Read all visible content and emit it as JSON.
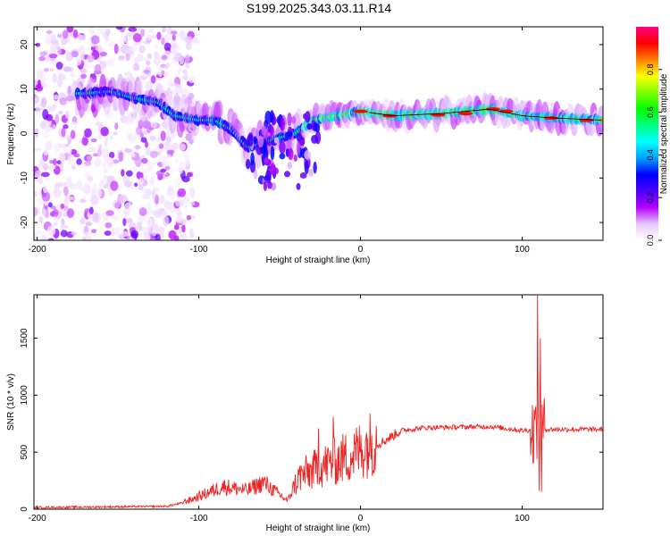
{
  "title": "S199.2025.343.03.11.R14",
  "chart_data": [
    {
      "type": "heatmap",
      "xlabel": "Height of straight line (km)",
      "ylabel": "Frequency (Hz)",
      "xlim": [
        -202,
        150
      ],
      "ylim": [
        -24,
        24
      ],
      "xticks": [
        -200,
        -100,
        0,
        100
      ],
      "yticks": [
        20,
        10,
        0,
        -10,
        -20
      ],
      "colorbar": {
        "label": "Normalized spectral amplitude",
        "ticks": [
          "0.0",
          "0.2",
          "0.4",
          "0.6",
          "0.8"
        ],
        "tick_values": [
          0.0,
          0.2,
          0.4,
          0.6,
          0.8
        ],
        "range": [
          0,
          1
        ],
        "colors": [
          "#ffffff",
          "#e6c8ff",
          "#b400ff",
          "#4b00ff",
          "#0000ff",
          "#00a0ff",
          "#00ffff",
          "#00ff80",
          "#00ff00",
          "#80ff00",
          "#ffff00",
          "#ff8000",
          "#ff0000",
          "#ff0080"
        ]
      },
      "ridge": [
        {
          "x": -170,
          "f": 9
        },
        {
          "x": -155,
          "f": 9.5
        },
        {
          "x": -140,
          "f": 8
        },
        {
          "x": -125,
          "f": 7
        },
        {
          "x": -115,
          "f": 4
        },
        {
          "x": -100,
          "f": 3
        },
        {
          "x": -90,
          "f": 3
        },
        {
          "x": -80,
          "f": 1
        },
        {
          "x": -70,
          "f": -3
        },
        {
          "x": -60,
          "f": -2
        },
        {
          "x": -50,
          "f": -1
        },
        {
          "x": -40,
          "f": 0
        },
        {
          "x": -30,
          "f": 3
        },
        {
          "x": -15,
          "f": 4
        },
        {
          "x": 0,
          "f": 5
        },
        {
          "x": 20,
          "f": 4
        },
        {
          "x": 50,
          "f": 4.5
        },
        {
          "x": 80,
          "f": 5.5
        },
        {
          "x": 100,
          "f": 4
        },
        {
          "x": 120,
          "f": 3.5
        },
        {
          "x": 150,
          "f": 3
        }
      ]
    },
    {
      "type": "line",
      "xlabel": "Height of straight line (km)",
      "ylabel": "SNR (10 * v/v)",
      "xlim": [
        -202,
        150
      ],
      "ylim": [
        0,
        1880
      ],
      "xticks": [
        -200,
        -100,
        0,
        100
      ],
      "yticks": [
        0,
        500,
        1000,
        1500
      ],
      "color": "#ee2222",
      "envelope": [
        {
          "x": -202,
          "y": 15
        },
        {
          "x": -120,
          "y": 25
        },
        {
          "x": -105,
          "y": 70
        },
        {
          "x": -85,
          "y": 170
        },
        {
          "x": -70,
          "y": 140
        },
        {
          "x": -60,
          "y": 200
        },
        {
          "x": -45,
          "y": 60
        },
        {
          "x": -38,
          "y": 270
        },
        {
          "x": -25,
          "y": 350
        },
        {
          "x": -15,
          "y": 400
        },
        {
          "x": -5,
          "y": 450
        },
        {
          "x": 5,
          "y": 540
        },
        {
          "x": 15,
          "y": 600
        },
        {
          "x": 25,
          "y": 690
        },
        {
          "x": 40,
          "y": 715
        },
        {
          "x": 80,
          "y": 725
        },
        {
          "x": 100,
          "y": 690
        },
        {
          "x": 115,
          "y": 700
        },
        {
          "x": 150,
          "y": 700
        }
      ],
      "spikes": [
        {
          "x": 108.5,
          "y": 900
        },
        {
          "x": 109.5,
          "y": 1880
        },
        {
          "x": 110.5,
          "y": 160
        },
        {
          "x": 111.2,
          "y": 1500
        },
        {
          "x": 112,
          "y": 150
        },
        {
          "x": -17,
          "y": 810
        },
        {
          "x": -26,
          "y": 710
        }
      ]
    }
  ]
}
